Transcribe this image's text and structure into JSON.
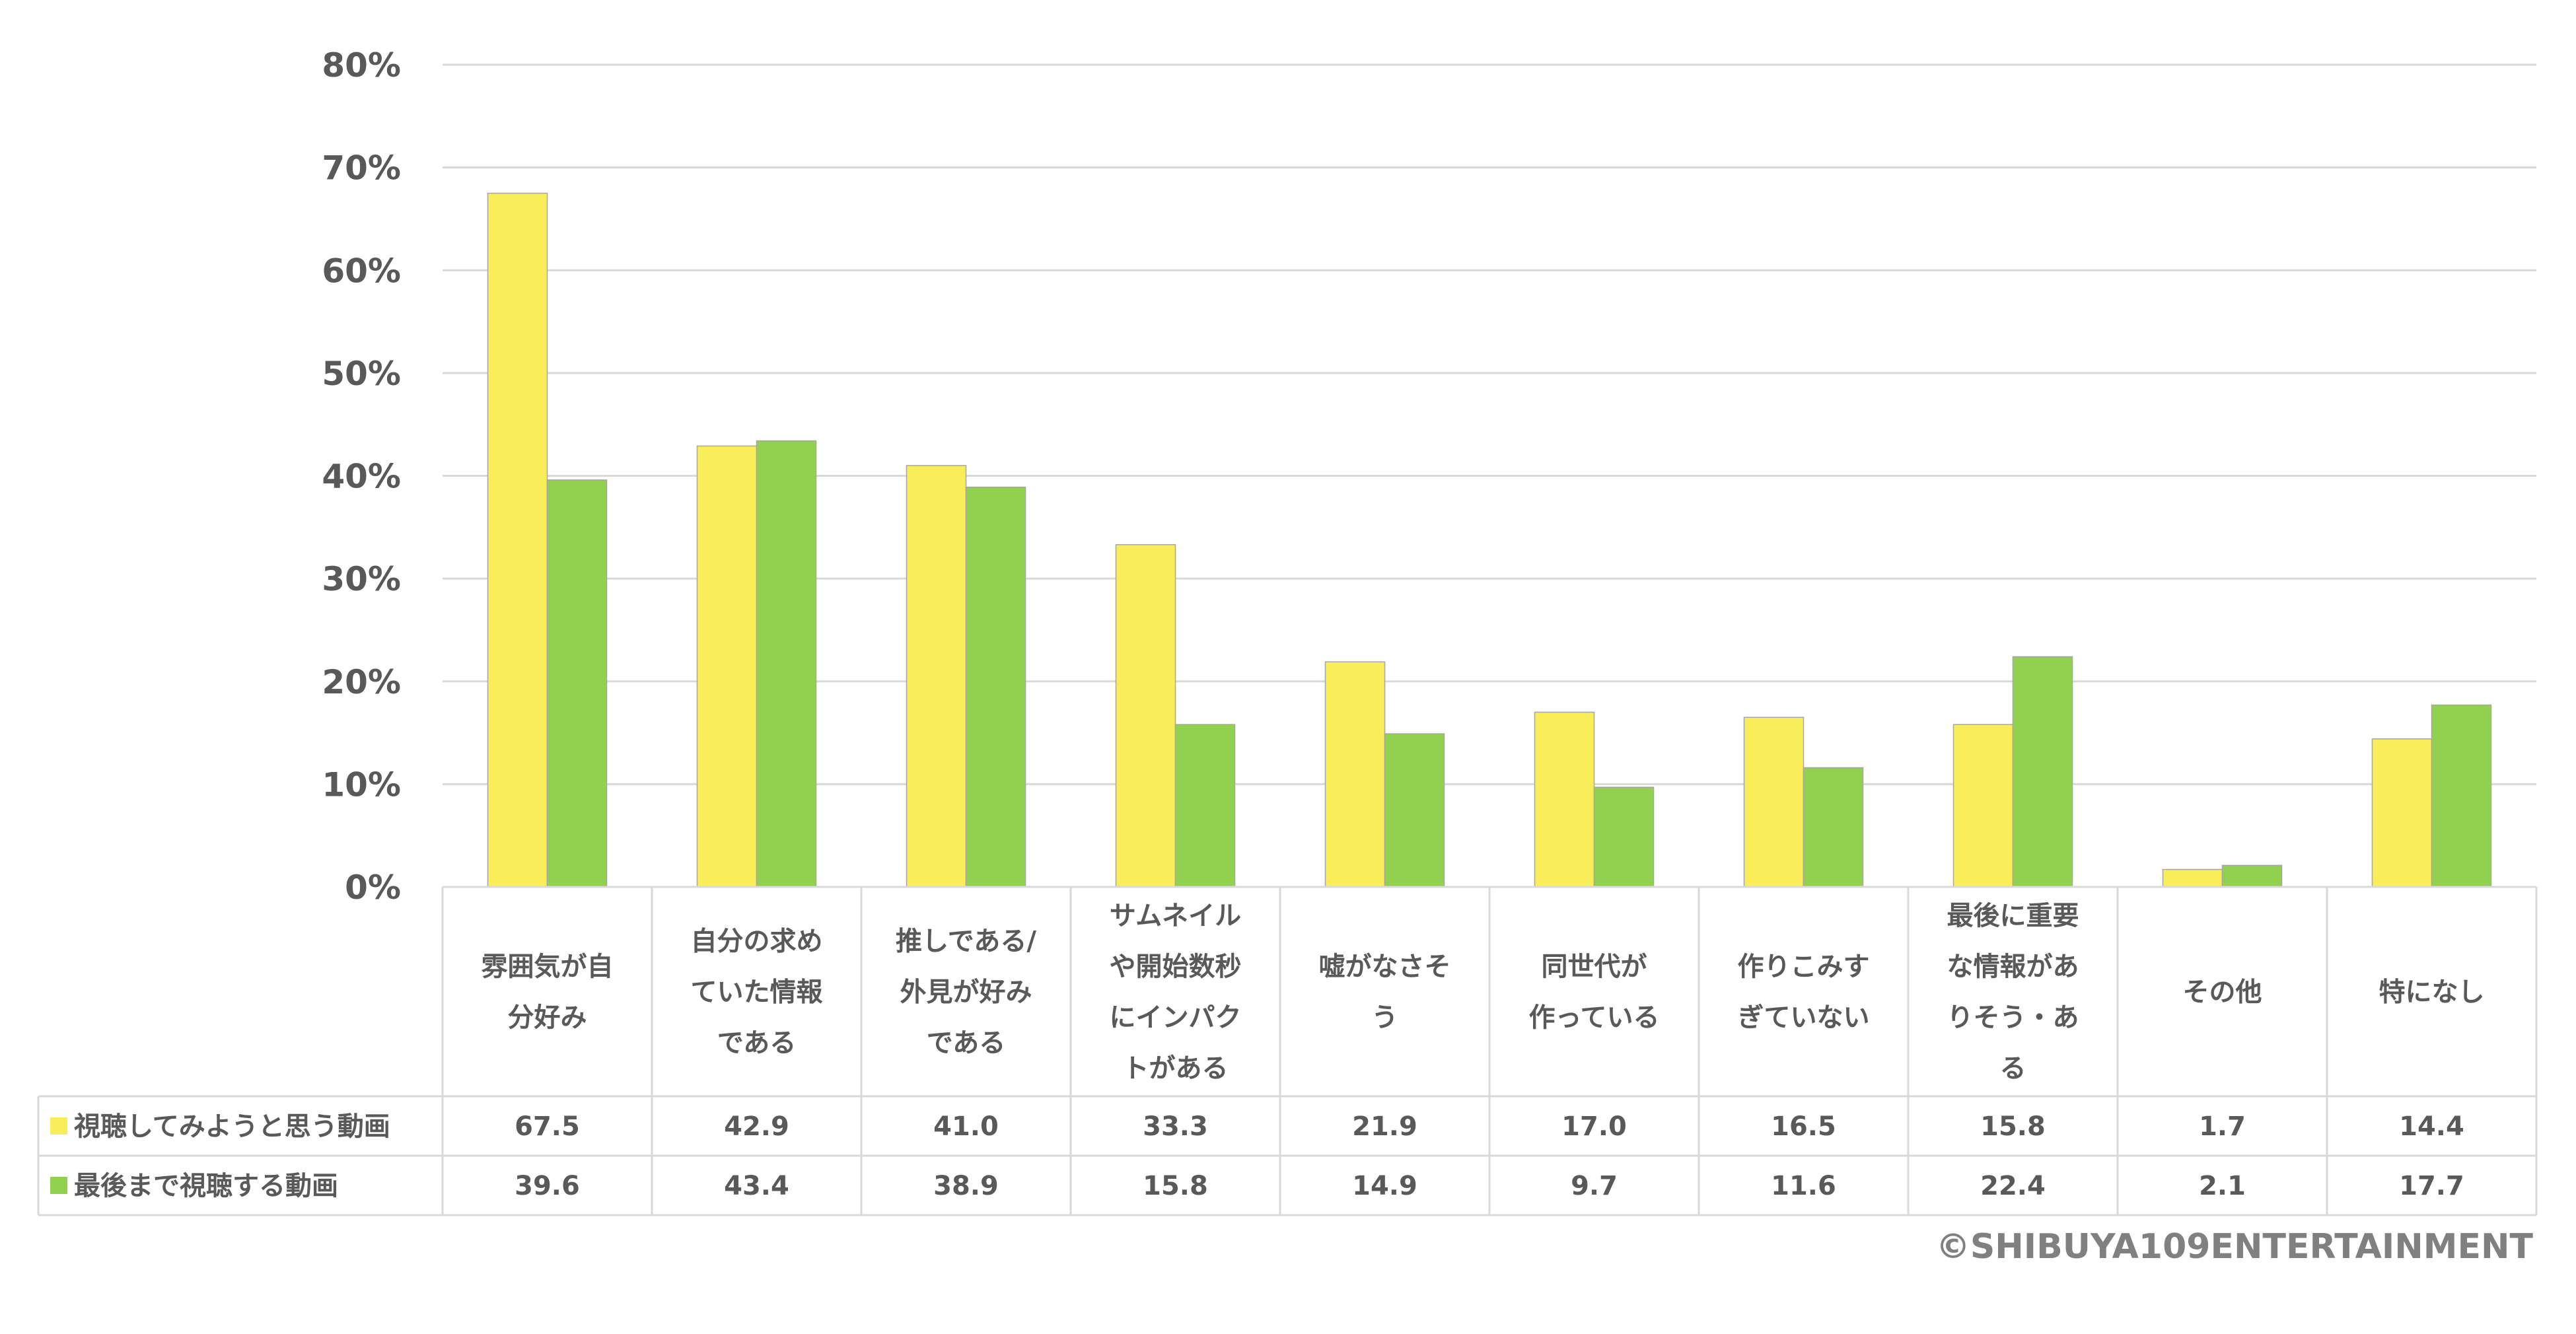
{
  "chart_data": {
    "type": "bar",
    "categories": [
      [
        "雰囲気が自",
        "分好み"
      ],
      [
        "自分の求め",
        "ていた情報",
        "である"
      ],
      [
        "推しである/",
        "外見が好み",
        "である"
      ],
      [
        "サムネイル",
        "や開始数秒",
        "にインパク",
        "トがある"
      ],
      [
        "嘘がなさそ",
        "う"
      ],
      [
        "同世代が",
        "作っている"
      ],
      [
        "作りこみす",
        "ぎていない"
      ],
      [
        "最後に重要",
        "な情報があ",
        "りそう・あ",
        "る"
      ],
      [
        "その他"
      ],
      [
        "特になし"
      ]
    ],
    "series": [
      {
        "name": "視聴してみようと思う動画",
        "color": "#FAED5A",
        "values": [
          67.5,
          42.9,
          41.0,
          33.3,
          21.9,
          17.0,
          16.5,
          15.8,
          1.7,
          14.4
        ],
        "labels": [
          "67.5",
          "42.9",
          "41.0",
          "33.3",
          "21.9",
          "17.0",
          "16.5",
          "15.8",
          "1.7",
          "14.4"
        ]
      },
      {
        "name": "最後まで視聴する動画",
        "color": "#92D050",
        "values": [
          39.6,
          43.4,
          38.9,
          15.8,
          14.9,
          9.7,
          11.6,
          22.4,
          2.1,
          17.7
        ],
        "labels": [
          "39.6",
          "43.4",
          "38.9",
          "15.8",
          "14.9",
          "9.7",
          "11.6",
          "22.4",
          "2.1",
          "17.7"
        ]
      }
    ],
    "ylim": [
      0,
      80
    ],
    "yticks": [
      "0%",
      "10%",
      "20%",
      "30%",
      "40%",
      "50%",
      "60%",
      "70%",
      "80%"
    ],
    "grid": true,
    "legend": "data-table"
  },
  "copyright": "©SHIBUYA109ENTERTAINMENT"
}
